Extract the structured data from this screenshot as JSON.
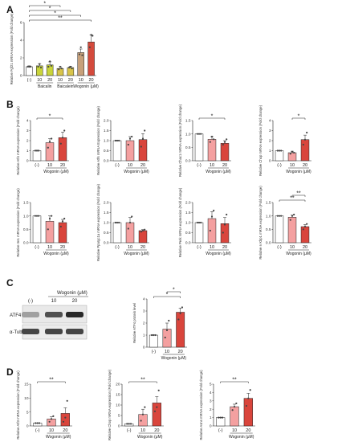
{
  "figure": {
    "panels": [
      {
        "letter": "A",
        "x": 8,
        "y": 16
      },
      {
        "letter": "B",
        "x": 8,
        "y": 134
      },
      {
        "letter": "C",
        "x": 8,
        "y": 356
      },
      {
        "letter": "D",
        "x": 8,
        "y": 467
      }
    ]
  },
  "western_blot": {
    "treatment_label": "Wogonin (μM)",
    "lanes": [
      "(-)",
      "10",
      "20"
    ],
    "bands": [
      {
        "name": "ATF4",
        "intensity": [
          0.35,
          0.75,
          0.95
        ]
      },
      {
        "name": "α-Tubulin",
        "intensity": [
          0.8,
          0.8,
          0.8
        ]
      }
    ]
  },
  "chart_data": [
    {
      "type": "bar",
      "panel": "A",
      "ylabel": "Relative Fgf21 mRNA expression (Fold change)",
      "ylim": [
        0,
        6
      ],
      "yticks": [
        "0",
        "2",
        "4",
        "6"
      ],
      "categories": [
        "(-)",
        "10",
        "20",
        "10",
        "20",
        "10",
        "20"
      ],
      "groups": [
        {
          "label": "Baicalin",
          "from": 1,
          "to": 2
        },
        {
          "label": "Baicalein",
          "from": 3,
          "to": 4
        },
        {
          "label": "Wogonin (μM)",
          "from": 5,
          "to": 6
        }
      ],
      "values": [
        1.0,
        1.1,
        1.2,
        0.8,
        0.9,
        2.6,
        3.8
      ],
      "errors": [
        0.1,
        0.25,
        0.35,
        0.2,
        0.15,
        0.4,
        0.8
      ],
      "colors": [
        "#ffffff",
        "#c9d43a",
        "#c9d43a",
        "#d8c44a",
        "#d8c44a",
        "#c7a07a",
        "#d44a3c"
      ],
      "points": [
        [
          1,
          1,
          1
        ],
        [
          1.0,
          1.3,
          0.9
        ],
        [
          1.0,
          1.6,
          1.1
        ],
        [
          0.7,
          1.0,
          0.8
        ],
        [
          0.9,
          1.0,
          0.8
        ],
        [
          2.4,
          3.2,
          2.3
        ],
        [
          3.2,
          4.6,
          4.5
        ]
      ],
      "sig": [
        {
          "a": 0,
          "b": 6,
          "label": "**"
        },
        {
          "a": 0,
          "b": 5,
          "label": "*"
        },
        {
          "a": 0,
          "b": 4,
          "label": "*"
        },
        {
          "a": 0,
          "b": 3,
          "label": "*"
        }
      ]
    },
    {
      "type": "bar",
      "panel": "B",
      "ylabel": "Relative Atf4 mRNA expression (Fold change)",
      "ylim": [
        0,
        4
      ],
      "yticks": [
        "0",
        "1",
        "2",
        "3",
        "4"
      ],
      "categories": [
        "(-)",
        "10",
        "20"
      ],
      "treatment": "Wogonin (μM)",
      "values": [
        1.0,
        1.8,
        2.3
      ],
      "errors": [
        0.05,
        0.4,
        0.55
      ],
      "colors": [
        "#ffffff",
        "#f4a0a0",
        "#d9453c"
      ],
      "points": [
        [
          1,
          1,
          1
        ],
        [
          1.3,
          1.9,
          2.2
        ],
        [
          1.7,
          2.3,
          3.0
        ]
      ],
      "sig": [
        {
          "a": 0,
          "b": 2,
          "label": "*"
        }
      ]
    },
    {
      "type": "bar",
      "panel": "B",
      "ylabel": "Relative Atf6 mRNA Expression (Fold change)",
      "ylim": [
        0,
        2.0
      ],
      "yticks": [
        "0.0",
        "0.5",
        "1.0",
        "1.5",
        "2.0"
      ],
      "categories": [
        "(-)",
        "10",
        "20"
      ],
      "treatment": "Wogonin (μM)",
      "values": [
        1.0,
        1.0,
        1.05
      ],
      "errors": [
        0.02,
        0.2,
        0.3
      ],
      "colors": [
        "#ffffff",
        "#f4a0a0",
        "#d9453c"
      ],
      "points": [
        [
          1,
          1,
          1
        ],
        [
          0.8,
          1.1,
          1.2
        ],
        [
          0.7,
          1.1,
          1.5
        ]
      ],
      "sig": []
    },
    {
      "type": "bar",
      "panel": "B",
      "ylabel": "Relative Chac1 mRNA expression (Fold change)",
      "ylim": [
        0,
        1.5
      ],
      "yticks": [
        "0.0",
        "0.5",
        "1.0",
        "1.5"
      ],
      "categories": [
        "(-)",
        "10",
        "20"
      ],
      "treatment": "Wogonin (μM)",
      "values": [
        1.0,
        0.8,
        0.65
      ],
      "errors": [
        0.01,
        0.1,
        0.1
      ],
      "colors": [
        "#ffffff",
        "#f4a0a0",
        "#d9453c"
      ],
      "points": [
        [
          1,
          1,
          1
        ],
        [
          0.7,
          0.9,
          0.8
        ],
        [
          0.6,
          0.7,
          0.8
        ]
      ],
      "sig": [
        {
          "a": 0,
          "b": 2,
          "label": "*"
        }
      ]
    },
    {
      "type": "bar",
      "panel": "B",
      "ylabel": "Relative Chop mRNA expression (Fold change)",
      "ylim": [
        0,
        4
      ],
      "yticks": [
        "0",
        "1",
        "2",
        "3",
        "4"
      ],
      "categories": [
        "(-)",
        "10",
        "20"
      ],
      "treatment": "Wogonin (μM)",
      "values": [
        1.0,
        0.8,
        2.1
      ],
      "errors": [
        0.02,
        0.15,
        0.45
      ],
      "colors": [
        "#ffffff",
        "#f4a0a0",
        "#d9453c"
      ],
      "points": [
        [
          1,
          1,
          1
        ],
        [
          0.7,
          0.9,
          0.8
        ],
        [
          1.6,
          2.1,
          2.8
        ]
      ],
      "sig": [
        {
          "a": 1,
          "b": 2,
          "label": "*"
        }
      ]
    },
    {
      "type": "bar",
      "panel": "B",
      "ylabel": "Relative Ire1 mRNA expression (Fold change)",
      "ylim": [
        0,
        1.5
      ],
      "yticks": [
        "0.0",
        "0.5",
        "1.0",
        "1.5"
      ],
      "categories": [
        "(-)",
        "10",
        "20"
      ],
      "treatment": "Wogonin (μM)",
      "values": [
        1.0,
        0.8,
        0.75
      ],
      "errors": [
        0.01,
        0.2,
        0.12
      ],
      "colors": [
        "#ffffff",
        "#f4a0a0",
        "#d9453c"
      ],
      "points": [
        [
          1,
          1,
          1
        ],
        [
          0.5,
          0.9,
          1.0
        ],
        [
          0.6,
          0.8,
          0.9
        ]
      ],
      "sig": []
    },
    {
      "type": "bar",
      "panel": "B",
      "ylabel": "Relative Ppargc1a mRNA expression (Fold change)",
      "ylim": [
        0,
        2.0
      ],
      "yticks": [
        "0.0",
        "0.5",
        "1.0",
        "1.5",
        "2.0"
      ],
      "categories": [
        "(-)",
        "10",
        "20"
      ],
      "treatment": "Wogonin (μM)",
      "values": [
        1.0,
        1.0,
        0.6
      ],
      "errors": [
        0.01,
        0.25,
        0.05
      ],
      "colors": [
        "#ffffff",
        "#f4a0a0",
        "#d9453c"
      ],
      "points": [
        [
          1,
          1,
          1
        ],
        [
          0.7,
          1.0,
          1.3
        ],
        [
          0.55,
          0.6,
          0.65
        ]
      ],
      "sig": []
    },
    {
      "type": "bar",
      "panel": "B",
      "ylabel": "Relative Perk mRNA expression (Fold change)",
      "ylim": [
        0,
        2.0
      ],
      "yticks": [
        "0.0",
        "0.5",
        "1.0",
        "1.5",
        "2.0"
      ],
      "categories": [
        "(-)",
        "10",
        "20"
      ],
      "treatment": "Wogonin (μM)",
      "values": [
        1.0,
        1.2,
        0.95
      ],
      "errors": [
        0.01,
        0.35,
        0.3
      ],
      "colors": [
        "#ffffff",
        "#f4a0a0",
        "#d9453c"
      ],
      "points": [
        [
          1,
          1,
          1
        ],
        [
          0.6,
          1.3,
          1.6
        ],
        [
          0.5,
          0.9,
          1.4
        ]
      ],
      "sig": []
    },
    {
      "type": "bar",
      "panel": "B",
      "ylabel": "Relative s-Xbp1 mRNA expression (Fold change)",
      "ylim": [
        0,
        1.5
      ],
      "yticks": [
        "0.0",
        "0.5",
        "1.0",
        "1.5"
      ],
      "categories": [
        "(-)",
        "10",
        "20"
      ],
      "treatment": "Wogonin (μM)",
      "values": [
        1.0,
        0.95,
        0.6
      ],
      "errors": [
        0.01,
        0.08,
        0.08
      ],
      "colors": [
        "#ffffff",
        "#f4a0a0",
        "#d9453c"
      ],
      "points": [
        [
          1,
          1,
          1
        ],
        [
          0.85,
          1.0,
          1.05
        ],
        [
          0.5,
          0.6,
          0.7
        ]
      ],
      "sig": [
        {
          "a": 0,
          "b": 2,
          "label": "**"
        },
        {
          "a": 1,
          "b": 2,
          "label": "**"
        }
      ]
    },
    {
      "type": "bar",
      "panel": "C",
      "ylabel": "Relative ATF4 protein level",
      "ylim": [
        0,
        4
      ],
      "yticks": [
        "0",
        "1",
        "2",
        "3",
        "4"
      ],
      "categories": [
        "(-)",
        "10",
        "20"
      ],
      "treatment": "Wogonin (μM)",
      "values": [
        1.0,
        1.5,
        2.9
      ],
      "errors": [
        0.02,
        0.5,
        0.35
      ],
      "colors": [
        "#ffffff",
        "#f4a0a0",
        "#d9453c"
      ],
      "points": [
        [
          1,
          1,
          1
        ],
        [
          0.8,
          1.4,
          2.2
        ],
        [
          2.3,
          2.8,
          3.3
        ]
      ],
      "sig": [
        {
          "a": 0,
          "b": 2,
          "label": "*"
        },
        {
          "a": 1,
          "b": 2,
          "label": "*"
        }
      ]
    },
    {
      "type": "bar",
      "panel": "D",
      "ylabel": "Relative Atf3 mRNA expression (Fold change)",
      "ylim": [
        0,
        15
      ],
      "yticks": [
        "0",
        "5",
        "10",
        "15"
      ],
      "categories": [
        "(-)",
        "10",
        "20"
      ],
      "treatment": "Wogonin (μM)",
      "values": [
        1.0,
        2.5,
        4.5
      ],
      "errors": [
        0.05,
        0.8,
        2.0
      ],
      "colors": [
        "#ffffff",
        "#f4a0a0",
        "#d9453c"
      ],
      "points": [
        [
          1,
          1,
          1
        ],
        [
          1.5,
          2.5,
          3.5
        ],
        [
          1.5,
          3.0,
          9.0
        ]
      ],
      "sig": [
        {
          "a": 0,
          "b": 2,
          "label": "**"
        }
      ]
    },
    {
      "type": "bar",
      "panel": "D",
      "ylabel": "Relative Chop mRNA expression (Fold change)",
      "ylim": [
        0,
        20
      ],
      "yticks": [
        "0",
        "5",
        "10",
        "15",
        "20"
      ],
      "categories": [
        "(-)",
        "10",
        "20"
      ],
      "treatment": "Wogonin (μM)",
      "values": [
        1.0,
        5.5,
        11.0
      ],
      "errors": [
        0.05,
        2.5,
        3.0
      ],
      "colors": [
        "#ffffff",
        "#f4a0a0",
        "#d9453c"
      ],
      "points": [
        [
          1,
          1,
          1
        ],
        [
          2.5,
          5.5,
          9.0
        ],
        [
          7.0,
          9.0,
          17.0
        ]
      ],
      "sig": [
        {
          "a": 0,
          "b": 2,
          "label": "**"
        }
      ]
    },
    {
      "type": "bar",
      "panel": "D",
      "ylabel": "Relative Asns mRNA expression (Fold change)",
      "ylim": [
        0,
        5
      ],
      "yticks": [
        "0",
        "1",
        "2",
        "3",
        "4",
        "5"
      ],
      "categories": [
        "(-)",
        "10",
        "20"
      ],
      "treatment": "Wogonin (μM)",
      "values": [
        1.0,
        2.3,
        3.3
      ],
      "errors": [
        0.02,
        0.3,
        0.6
      ],
      "colors": [
        "#ffffff",
        "#f4a0a0",
        "#d9453c"
      ],
      "points": [
        [
          1,
          1,
          1
        ],
        [
          1.9,
          2.3,
          2.7
        ],
        [
          2.4,
          3.3,
          4.3
        ]
      ],
      "sig": [
        {
          "a": 0,
          "b": 2,
          "label": "**"
        }
      ]
    }
  ]
}
